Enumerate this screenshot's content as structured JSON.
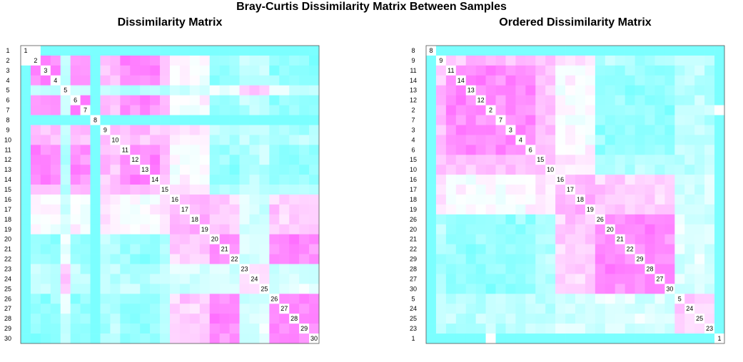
{
  "page": {
    "main_title": "Bray-Curtis Dissimilarity Matrix Between Samples"
  },
  "chart_data": [
    {
      "type": "heatmap",
      "title": "Dissimilarity Matrix",
      "order": [
        1,
        2,
        3,
        4,
        5,
        6,
        7,
        8,
        9,
        10,
        11,
        12,
        13,
        14,
        15,
        16,
        17,
        18,
        19,
        20,
        21,
        22,
        23,
        24,
        25,
        26,
        27,
        28,
        29,
        30
      ],
      "color_low": "#ff66ff",
      "color_mid": "#ffffff",
      "color_high": "#66ffff",
      "diagonal_color": "#ffffff"
    },
    {
      "type": "heatmap",
      "title": "Ordered Dissimilarity Matrix",
      "order": [
        8,
        9,
        11,
        14,
        13,
        12,
        2,
        7,
        3,
        4,
        6,
        15,
        10,
        16,
        17,
        18,
        19,
        26,
        20,
        21,
        22,
        29,
        28,
        27,
        30,
        5,
        24,
        25,
        23,
        1
      ],
      "color_low": "#ff66ff",
      "color_mid": "#ffffff",
      "color_high": "#66ffff",
      "diagonal_color": "#ffffff"
    }
  ]
}
